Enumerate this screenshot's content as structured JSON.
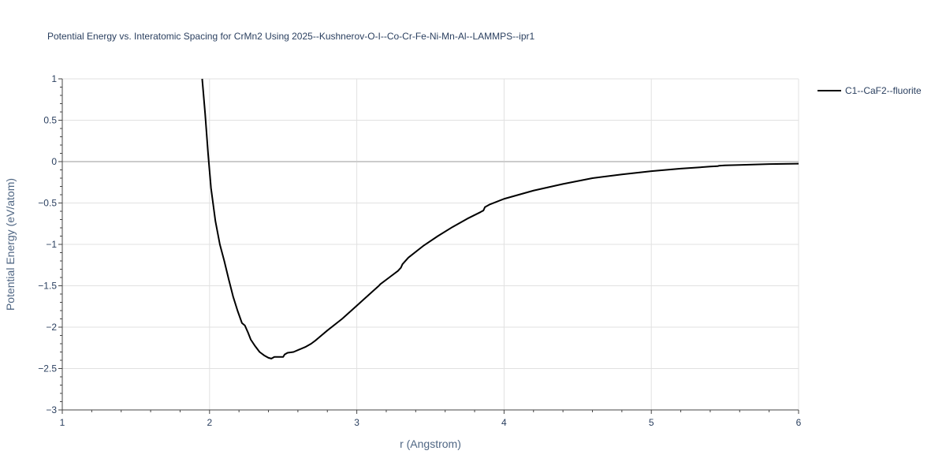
{
  "chart_data": {
    "type": "line",
    "title": "Potential Energy vs. Interatomic Spacing for CrMn2 Using 2025--Kushnerov-O-I--Co-Cr-Fe-Ni-Mn-Al--LAMMPS--ipr1",
    "xlabel": "r (Angstrom)",
    "ylabel": "Potential Energy (eV/atom)",
    "xlim": [
      1,
      6
    ],
    "ylim": [
      -3,
      1
    ],
    "x_ticks": [
      1,
      2,
      3,
      4,
      5,
      6
    ],
    "x_tick_labels": [
      "1",
      "2",
      "3",
      "4",
      "5",
      "6"
    ],
    "y_ticks": [
      1,
      0.5,
      0,
      -0.5,
      -1,
      -1.5,
      -2,
      -2.5,
      -3
    ],
    "y_tick_labels": [
      "1",
      "0.5",
      "0",
      "−0.5",
      "−1",
      "−1.5",
      "−2",
      "−2.5",
      "−3"
    ],
    "grid": true,
    "legend_position": "top-right",
    "colors": {
      "series": "#000000",
      "grid": "#e1e1e1",
      "zeroline": "#cccccc"
    },
    "series": [
      {
        "name": "C1--CaF2--fluorite",
        "x": [
          1.95,
          1.97,
          1.99,
          2.01,
          2.04,
          2.07,
          2.1,
          2.13,
          2.16,
          2.19,
          2.22,
          2.24,
          2.26,
          2.28,
          2.31,
          2.34,
          2.37,
          2.4,
          2.42,
          2.44,
          2.47,
          2.5,
          2.51,
          2.53,
          2.57,
          2.61,
          2.65,
          2.69,
          2.72,
          2.74,
          2.8,
          2.9,
          3.0,
          3.1,
          3.15,
          3.16,
          3.22,
          3.28,
          3.3,
          3.31,
          3.35,
          3.45,
          3.55,
          3.65,
          3.75,
          3.84,
          3.86,
          3.87,
          3.9,
          4.0,
          4.2,
          4.4,
          4.6,
          4.8,
          5.0,
          5.2,
          5.4,
          5.45,
          5.46,
          5.5,
          5.6,
          5.8,
          6.0
        ],
        "y": [
          1.0,
          0.58,
          0.1,
          -0.32,
          -0.72,
          -1.0,
          -1.2,
          -1.42,
          -1.63,
          -1.8,
          -1.95,
          -1.98,
          -2.06,
          -2.15,
          -2.23,
          -2.3,
          -2.34,
          -2.37,
          -2.38,
          -2.36,
          -2.36,
          -2.36,
          -2.33,
          -2.31,
          -2.3,
          -2.27,
          -2.24,
          -2.2,
          -2.16,
          -2.13,
          -2.04,
          -1.9,
          -1.74,
          -1.58,
          -1.5,
          -1.48,
          -1.4,
          -1.32,
          -1.28,
          -1.24,
          -1.16,
          -1.02,
          -0.9,
          -0.79,
          -0.69,
          -0.61,
          -0.59,
          -0.55,
          -0.52,
          -0.45,
          -0.35,
          -0.27,
          -0.2,
          -0.155,
          -0.115,
          -0.085,
          -0.06,
          -0.055,
          -0.05,
          -0.045,
          -0.04,
          -0.03,
          -0.025
        ]
      }
    ]
  }
}
